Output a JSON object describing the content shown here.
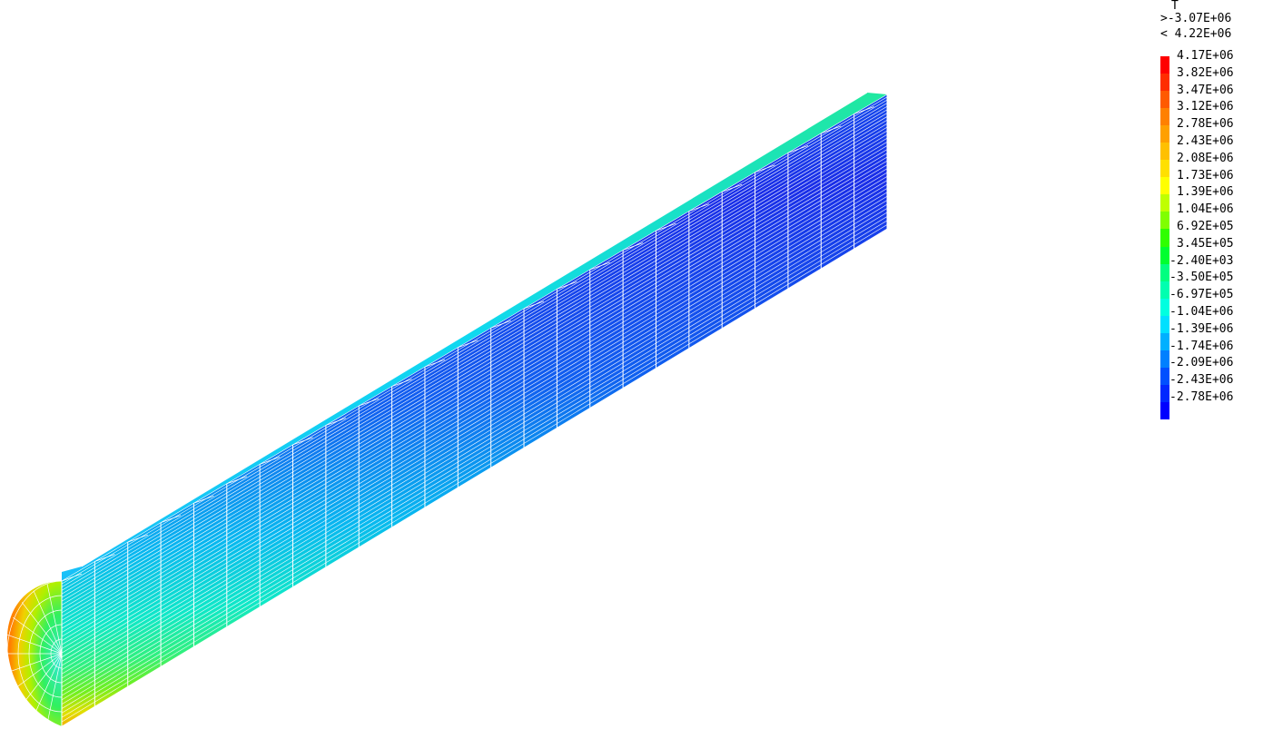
{
  "legend": {
    "title": "T",
    "max_line": ">-3.07E+06",
    "min_line": "< 4.22E+06",
    "levels": [
      {
        "label": "4.17E+06",
        "color": "#ff0000"
      },
      {
        "label": "3.82E+06",
        "color": "#ff2d00"
      },
      {
        "label": "3.47E+06",
        "color": "#ff5a00"
      },
      {
        "label": "3.12E+06",
        "color": "#ff8000"
      },
      {
        "label": "2.78E+06",
        "color": "#ffa000"
      },
      {
        "label": "2.43E+06",
        "color": "#ffc000"
      },
      {
        "label": "2.08E+06",
        "color": "#ffe000"
      },
      {
        "label": "1.73E+06",
        "color": "#ffff00"
      },
      {
        "label": "1.39E+06",
        "color": "#c0ff00"
      },
      {
        "label": "1.04E+06",
        "color": "#80ff00"
      },
      {
        "label": "6.92E+05",
        "color": "#30ff00"
      },
      {
        "label": "3.45E+05",
        "color": "#00ff30"
      },
      {
        "label": "-2.40E+03",
        "color": "#00ff80"
      },
      {
        "label": "-3.50E+05",
        "color": "#00ffb0"
      },
      {
        "label": "-6.97E+05",
        "color": "#00ffe0"
      },
      {
        "label": "-1.04E+06",
        "color": "#00e0ff"
      },
      {
        "label": "-1.39E+06",
        "color": "#00b0ff"
      },
      {
        "label": "-1.74E+06",
        "color": "#0080ff"
      },
      {
        "label": "-2.09E+06",
        "color": "#0050ff"
      },
      {
        "label": "-2.43E+06",
        "color": "#0028ff"
      },
      {
        "label": "-2.78E+06",
        "color": "#0000ff"
      }
    ]
  }
}
